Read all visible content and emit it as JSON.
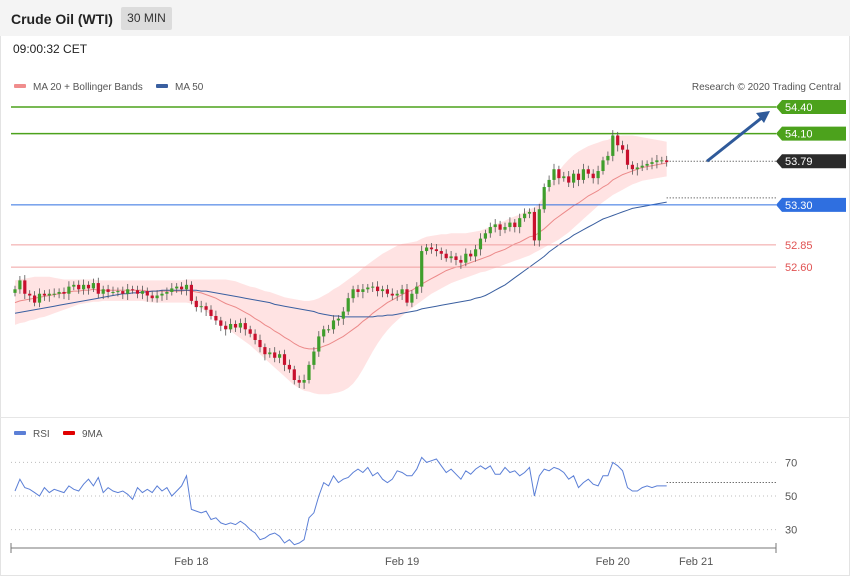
{
  "header": {
    "title": "Crude Oil (WTI)",
    "timeframe": "30 MIN",
    "timestamp": "09:00:32 CET"
  },
  "legend": {
    "bollinger": {
      "label": "MA 20 + Bollinger Bands",
      "color": "#f08d8d"
    },
    "ma50": {
      "label": "MA 50",
      "color": "#3a5fa0"
    },
    "rsi": {
      "label": "RSI",
      "color": "#5b7fd6"
    },
    "rsi_ma": {
      "label": "9MA",
      "color": "#e00000"
    }
  },
  "credit": "Research © 2020 Trading Central",
  "colors": {
    "up": "#3f9e2c",
    "down": "#c8102e",
    "resistance": "#4ca21c",
    "pivot": "#2f6fe0",
    "support": "#e05252",
    "current": "#2b2b2b",
    "arrow": "#2f5a9a"
  },
  "chart_data": [
    {
      "type": "candlestick",
      "ylim": [
        51.3,
        54.55
      ],
      "x_ticks": [
        "Feb 18",
        "Feb 19",
        "Feb 20",
        "Feb 21"
      ],
      "x_tick_index": [
        36,
        79,
        122,
        139
      ],
      "levels": [
        {
          "value": 54.4,
          "label": "54.40",
          "kind": "resistance"
        },
        {
          "value": 54.1,
          "label": "54.10",
          "kind": "resistance"
        },
        {
          "value": 53.79,
          "label": "53.79",
          "kind": "current"
        },
        {
          "value": 53.3,
          "label": "53.30",
          "kind": "pivot"
        },
        {
          "value": 52.85,
          "label": "52.85",
          "kind": "support"
        },
        {
          "value": 52.6,
          "label": "52.60",
          "kind": "support"
        }
      ],
      "forecast_arrow": {
        "from": 53.79,
        "to": 54.4
      },
      "closes": [
        52.35,
        52.45,
        52.3,
        52.28,
        52.2,
        52.3,
        52.28,
        52.3,
        52.3,
        52.32,
        52.3,
        52.38,
        52.4,
        52.35,
        52.4,
        52.36,
        52.42,
        52.3,
        52.35,
        52.32,
        52.32,
        52.33,
        52.3,
        52.35,
        52.34,
        52.3,
        52.33,
        52.28,
        52.25,
        52.28,
        52.3,
        52.32,
        52.36,
        52.38,
        52.35,
        52.4,
        52.22,
        52.15,
        52.16,
        52.12,
        52.05,
        52.0,
        51.94,
        51.9,
        51.96,
        51.92,
        51.97,
        51.9,
        51.85,
        51.78,
        51.7,
        51.62,
        51.64,
        51.58,
        51.62,
        51.5,
        51.45,
        51.33,
        51.3,
        51.33,
        51.5,
        51.65,
        51.82,
        51.9,
        51.9,
        52.0,
        52.02,
        52.1,
        52.25,
        52.35,
        52.32,
        52.35,
        52.37,
        52.38,
        52.33,
        52.35,
        52.3,
        52.28,
        52.3,
        52.35,
        52.2,
        52.3,
        52.38,
        52.78,
        52.82,
        52.8,
        52.78,
        52.75,
        52.7,
        52.72,
        52.68,
        52.65,
        52.75,
        52.72,
        52.8,
        52.92,
        52.98,
        53.05,
        53.08,
        53.02,
        53.05,
        53.1,
        53.05,
        53.15,
        53.2,
        53.22,
        52.9,
        53.25,
        53.5,
        53.58,
        53.7,
        53.6,
        53.62,
        53.55,
        53.65,
        53.58,
        53.7,
        53.65,
        53.6,
        53.68,
        53.8,
        53.85,
        54.08,
        53.97,
        53.92,
        53.75,
        53.7,
        53.72,
        53.74,
        53.76,
        53.78,
        53.8,
        53.8,
        53.78
      ],
      "ma20": [
        52.2,
        52.22,
        52.23,
        52.24,
        52.25,
        52.26,
        52.27,
        52.28,
        52.29,
        52.3,
        52.31,
        52.32,
        52.33,
        52.33,
        52.34,
        52.34,
        52.35,
        52.34,
        52.34,
        52.34,
        52.34,
        52.34,
        52.34,
        52.34,
        52.34,
        52.34,
        52.34,
        52.33,
        52.33,
        52.33,
        52.33,
        52.33,
        52.33,
        52.33,
        52.33,
        52.34,
        52.33,
        52.32,
        52.31,
        52.29,
        52.27,
        52.25,
        52.22,
        52.19,
        52.17,
        52.15,
        52.12,
        52.09,
        52.06,
        52.02,
        51.99,
        51.95,
        51.92,
        51.88,
        51.85,
        51.81,
        51.78,
        51.74,
        51.71,
        51.69,
        51.68,
        51.68,
        51.69,
        51.71,
        51.73,
        51.76,
        51.79,
        51.82,
        51.86,
        51.9,
        51.94,
        51.99,
        52.03,
        52.08,
        52.12,
        52.16,
        52.2,
        52.23,
        52.26,
        52.29,
        52.32,
        52.34,
        52.37,
        52.41,
        52.44,
        52.47,
        52.5,
        52.53,
        52.56,
        52.58,
        52.6,
        52.61,
        52.63,
        52.65,
        52.67,
        52.69,
        52.71,
        52.73,
        52.76,
        52.78,
        52.8,
        52.83,
        52.86,
        52.88,
        52.91,
        52.94,
        52.95,
        52.99,
        53.03,
        53.08,
        53.13,
        53.17,
        53.21,
        53.25,
        53.29,
        53.32,
        53.36,
        53.4,
        53.43,
        53.46,
        53.5,
        53.53,
        53.58,
        53.61,
        53.64,
        53.66,
        53.68,
        53.7,
        53.72,
        53.73,
        53.74,
        53.75,
        53.76,
        53.77
      ],
      "bb_upper": [
        52.45,
        52.46,
        52.47,
        52.48,
        52.49,
        52.49,
        52.49,
        52.49,
        52.48,
        52.47,
        52.46,
        52.46,
        52.46,
        52.46,
        52.46,
        52.46,
        52.46,
        52.45,
        52.45,
        52.45,
        52.45,
        52.45,
        52.45,
        52.45,
        52.45,
        52.45,
        52.45,
        52.45,
        52.45,
        52.45,
        52.45,
        52.45,
        52.45,
        52.45,
        52.45,
        52.46,
        52.46,
        52.46,
        52.46,
        52.46,
        52.46,
        52.46,
        52.46,
        52.46,
        52.45,
        52.44,
        52.42,
        52.4,
        52.38,
        52.37,
        52.35,
        52.33,
        52.32,
        52.3,
        52.28,
        52.26,
        52.25,
        52.24,
        52.23,
        52.22,
        52.22,
        52.23,
        52.25,
        52.28,
        52.31,
        52.35,
        52.38,
        52.42,
        52.46,
        52.5,
        52.54,
        52.59,
        52.63,
        52.67,
        52.71,
        52.75,
        52.78,
        52.81,
        52.84,
        52.86,
        52.87,
        52.88,
        52.89,
        52.92,
        52.94,
        52.95,
        52.96,
        52.97,
        52.97,
        52.98,
        52.98,
        52.98,
        52.98,
        52.99,
        53.0,
        53.01,
        53.03,
        53.05,
        53.08,
        53.1,
        53.12,
        53.15,
        53.17,
        53.19,
        53.22,
        53.25,
        53.27,
        53.32,
        53.4,
        53.5,
        53.6,
        53.68,
        53.75,
        53.81,
        53.86,
        53.9,
        53.93,
        53.96,
        53.98,
        54.0,
        54.02,
        54.03,
        54.06,
        54.07,
        54.08,
        54.08,
        54.08,
        54.07,
        54.06,
        54.05,
        54.04,
        54.03,
        54.02,
        54.01
      ],
      "bb_lower": [
        51.95,
        51.97,
        51.98,
        52.0,
        52.01,
        52.03,
        52.04,
        52.06,
        52.08,
        52.1,
        52.12,
        52.14,
        52.16,
        52.18,
        52.19,
        52.2,
        52.21,
        52.21,
        52.22,
        52.22,
        52.22,
        52.22,
        52.22,
        52.22,
        52.22,
        52.22,
        52.22,
        52.21,
        52.2,
        52.2,
        52.2,
        52.2,
        52.2,
        52.2,
        52.2,
        52.2,
        52.19,
        52.17,
        52.14,
        52.1,
        52.06,
        52.02,
        51.97,
        51.92,
        51.88,
        51.84,
        51.8,
        51.76,
        51.72,
        51.67,
        51.62,
        51.57,
        51.52,
        51.47,
        51.42,
        51.37,
        51.32,
        51.27,
        51.24,
        51.21,
        51.2,
        51.18,
        51.17,
        51.17,
        51.17,
        51.18,
        51.19,
        51.21,
        51.24,
        51.29,
        51.36,
        51.45,
        51.55,
        51.65,
        51.74,
        51.82,
        51.89,
        51.95,
        52.0,
        52.05,
        52.1,
        52.14,
        52.18,
        52.22,
        52.26,
        52.3,
        52.33,
        52.36,
        52.39,
        52.42,
        52.44,
        52.46,
        52.48,
        52.5,
        52.52,
        52.54,
        52.55,
        52.57,
        52.59,
        52.61,
        52.63,
        52.65,
        52.67,
        52.69,
        52.71,
        52.73,
        52.76,
        52.79,
        52.82,
        52.85,
        52.88,
        52.91,
        52.95,
        52.99,
        53.04,
        53.09,
        53.14,
        53.19,
        53.24,
        53.29,
        53.33,
        53.37,
        53.41,
        53.44,
        53.47,
        53.5,
        53.53,
        53.55,
        53.57,
        53.58,
        53.59,
        53.6,
        53.61,
        53.62
      ],
      "ma50": [
        52.08,
        52.09,
        52.1,
        52.11,
        52.12,
        52.13,
        52.14,
        52.15,
        52.16,
        52.17,
        52.18,
        52.19,
        52.2,
        52.21,
        52.22,
        52.23,
        52.24,
        52.25,
        52.26,
        52.27,
        52.28,
        52.29,
        52.3,
        52.3,
        52.31,
        52.31,
        52.32,
        52.32,
        52.33,
        52.33,
        52.34,
        52.34,
        52.34,
        52.34,
        52.34,
        52.34,
        52.34,
        52.34,
        52.33,
        52.33,
        52.32,
        52.31,
        52.3,
        52.29,
        52.28,
        52.27,
        52.26,
        52.25,
        52.24,
        52.23,
        52.22,
        52.21,
        52.2,
        52.18,
        52.17,
        52.16,
        52.15,
        52.14,
        52.13,
        52.12,
        52.11,
        52.1,
        52.08,
        52.07,
        52.06,
        52.05,
        52.05,
        52.04,
        52.04,
        52.04,
        52.04,
        52.04,
        52.04,
        52.04,
        52.05,
        52.05,
        52.06,
        52.06,
        52.07,
        52.08,
        52.09,
        52.1,
        52.11,
        52.13,
        52.14,
        52.15,
        52.16,
        52.17,
        52.18,
        52.19,
        52.2,
        52.21,
        52.22,
        52.23,
        52.25,
        52.26,
        52.28,
        52.31,
        52.34,
        52.37,
        52.4,
        52.44,
        52.48,
        52.52,
        52.56,
        52.6,
        52.64,
        52.68,
        52.72,
        52.77,
        52.81,
        52.85,
        52.89,
        52.92,
        52.96,
        52.99,
        53.02,
        53.05,
        53.08,
        53.11,
        53.14,
        53.16,
        53.18,
        53.2,
        53.22,
        53.24,
        53.26,
        53.27,
        53.28,
        53.29,
        53.3,
        53.31,
        53.32,
        53.33
      ]
    },
    {
      "type": "line",
      "ylim": [
        20,
        75
      ],
      "y_ticks": [
        70,
        50,
        30
      ],
      "dotted_level": 58,
      "series": [
        {
          "name": "RSI",
          "values": [
            53,
            60,
            55,
            54,
            52,
            50,
            55,
            52,
            54,
            53,
            52,
            56,
            54,
            53,
            57,
            60,
            56,
            61,
            52,
            55,
            53,
            52,
            53,
            51,
            48,
            55,
            52,
            54,
            52,
            56,
            53,
            55,
            50,
            53,
            56,
            62,
            42,
            41,
            40,
            41,
            36,
            37,
            34,
            33,
            34,
            33,
            35,
            33,
            30,
            28,
            24,
            25,
            27,
            28,
            26,
            22,
            24,
            21,
            22,
            24,
            37,
            40,
            50,
            58,
            56,
            62,
            58,
            60,
            61,
            64,
            66,
            64,
            67,
            62,
            64,
            60,
            58,
            60,
            65,
            64,
            62,
            62,
            66,
            73,
            70,
            71,
            72,
            68,
            64,
            66,
            63,
            60,
            65,
            63,
            66,
            68,
            66,
            68,
            63,
            63,
            67,
            64,
            65,
            62,
            64,
            67,
            50,
            62,
            66,
            65,
            67,
            66,
            64,
            60,
            62,
            55,
            58,
            60,
            57,
            56,
            62,
            62,
            70,
            68,
            65,
            55,
            53,
            53,
            55,
            56,
            55,
            56,
            56,
            56
          ]
        }
      ]
    }
  ]
}
